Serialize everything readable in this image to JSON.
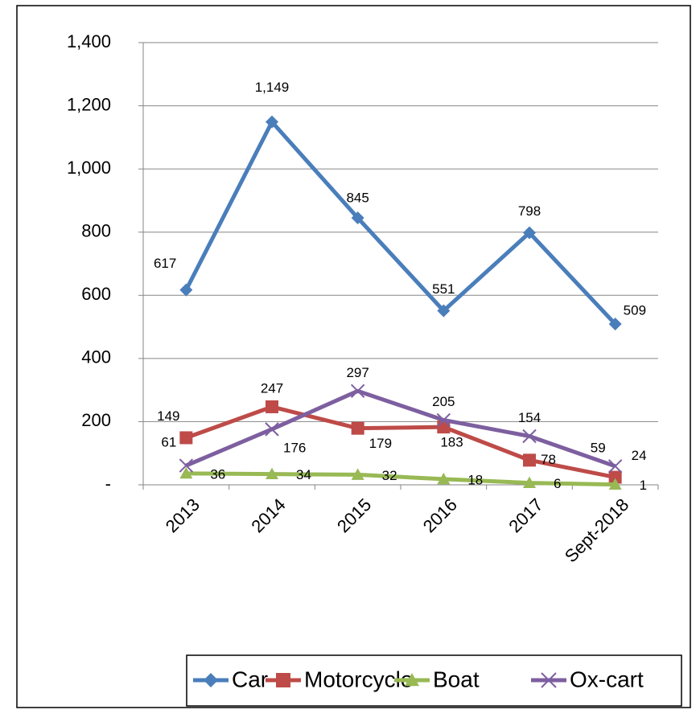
{
  "chart_data": {
    "type": "line",
    "categories": [
      "2013",
      "2014",
      "2015",
      "2016",
      "2017",
      "Sept-2018"
    ],
    "series": [
      {
        "name": "Car",
        "color": "#4a7ebb",
        "marker": "diamond",
        "values": [
          617,
          1149,
          845,
          551,
          798,
          509
        ],
        "value_labels": [
          "617",
          "1,149",
          "845",
          "551",
          "798",
          "509"
        ]
      },
      {
        "name": "Motorcycle",
        "color": "#be4b48",
        "marker": "square",
        "values": [
          149,
          247,
          179,
          183,
          78,
          24
        ]
      },
      {
        "name": "Boat",
        "color": "#98b954",
        "marker": "triangle",
        "values": [
          36,
          34,
          32,
          18,
          6,
          1
        ]
      },
      {
        "name": "Ox-cart",
        "color": "#7d5fa0",
        "marker": "x",
        "values": [
          61,
          176,
          297,
          205,
          154,
          59
        ]
      }
    ],
    "ylim": [
      0,
      1400
    ],
    "yticks": [
      {
        "value": 0,
        "label": "-"
      },
      200,
      400,
      600,
      800,
      {
        "value": 1000,
        "label": "1,000"
      },
      {
        "value": 1200,
        "label": "1,200"
      },
      {
        "value": 1400,
        "label": "1,400"
      }
    ],
    "grid": true,
    "legend": "bottom"
  }
}
